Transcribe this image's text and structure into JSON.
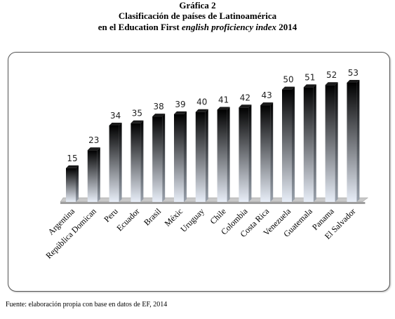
{
  "header": {
    "line1": "Gráfica 2",
    "line2": "Clasificación de países de Latinoamérica",
    "line3_pre": "en el Education First ",
    "line3_italic": "english proficiency index",
    "line3_post": " 2014"
  },
  "footer": {
    "source": "Fuente: elaboración propia con base en datos de EF, 2014"
  },
  "colors": {
    "bar_top": "#000000",
    "bar_bottom": "#e8eef8",
    "floor": "#c8c8c8"
  },
  "chart_data": {
    "type": "bar",
    "categories": [
      "Argentina",
      "República Domican",
      "Peru",
      "Ecuador",
      "Brasil",
      "Méxic",
      "Uruguay",
      "Chile",
      "Colombia",
      "Costa Rica",
      "Venezuela",
      "Guatemala",
      "Panama",
      "El Salvador"
    ],
    "values": [
      15,
      23,
      34,
      35,
      38,
      39,
      40,
      41,
      42,
      43,
      50,
      51,
      52,
      53
    ],
    "data_labels": true,
    "grid": false,
    "legend": "none"
  }
}
